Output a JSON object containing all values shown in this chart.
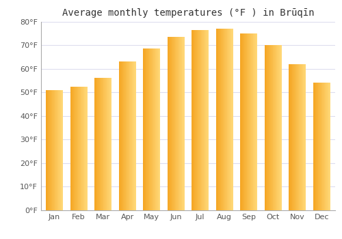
{
  "title": "Average monthly temperatures (°F ) in Brūqīn",
  "months": [
    "Jan",
    "Feb",
    "Mar",
    "Apr",
    "May",
    "Jun",
    "Jul",
    "Aug",
    "Sep",
    "Oct",
    "Nov",
    "Dec"
  ],
  "temperatures": [
    51,
    52.5,
    56,
    63,
    68.5,
    73.5,
    76.5,
    77,
    75,
    70,
    62,
    54
  ],
  "bar_color_left": "#F5A623",
  "bar_color_right": "#FFD878",
  "ylim": [
    0,
    80
  ],
  "yticks": [
    0,
    10,
    20,
    30,
    40,
    50,
    60,
    70,
    80
  ],
  "ytick_labels": [
    "0°F",
    "10°F",
    "20°F",
    "30°F",
    "40°F",
    "50°F",
    "60°F",
    "70°F",
    "80°F"
  ],
  "background_color": "#ffffff",
  "plot_bg_color": "#ffffff",
  "grid_color": "#ddddee",
  "title_fontsize": 10,
  "tick_fontsize": 8,
  "bar_width": 0.7
}
